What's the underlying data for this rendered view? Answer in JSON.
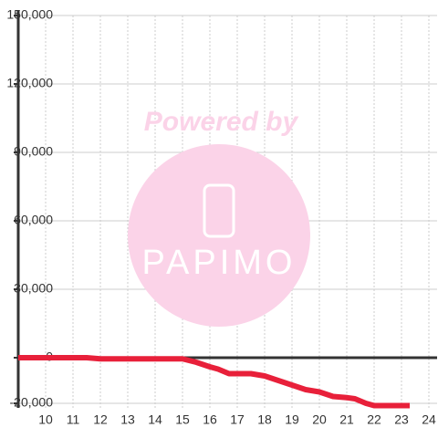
{
  "chart_data": {
    "type": "line",
    "watermark": {
      "line1": "Powered by",
      "line2": "PAPIMO"
    },
    "x": [
      9,
      11.5,
      12,
      13,
      14,
      15,
      15.5,
      16,
      16.3,
      16.7,
      17,
      17.5,
      18,
      18.5,
      19,
      19.5,
      20,
      20.5,
      21,
      21.3,
      21.7,
      22,
      23.3
    ],
    "series": [
      {
        "color": "#e8203a",
        "values": [
          0,
          0,
          -500,
          -500,
          -500,
          -500,
          -2000,
          -4000,
          -5000,
          -7000,
          -7000,
          -7000,
          -8000,
          -10000,
          -12000,
          -14000,
          -15000,
          -17000,
          -17500,
          -18000,
          -20000,
          -21000,
          -21000
        ]
      }
    ],
    "xlim": [
      9,
      24.3
    ],
    "xticks": [
      10,
      11,
      12,
      13,
      14,
      15,
      16,
      17,
      18,
      19,
      20,
      21,
      22,
      23,
      24
    ],
    "ylim": [
      -22000,
      150000
    ],
    "yticks": [
      {
        "value": -20000,
        "label": "-20,000"
      },
      0,
      {
        "value": 30000,
        "label": "30,000"
      },
      {
        "value": 60000,
        "label": "60,000"
      },
      {
        "value": 90000,
        "label": "90,000"
      },
      {
        "value": 120000,
        "label": "120,000"
      },
      {
        "value": 150000,
        "label": "150,000"
      }
    ],
    "grid": true
  }
}
